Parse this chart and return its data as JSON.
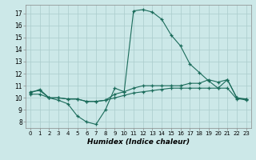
{
  "title": "",
  "xlabel": "Humidex (Indice chaleur)",
  "ylabel": "",
  "bg_color": "#cce8e8",
  "grid_color": "#aacccc",
  "line_color": "#1a6b5a",
  "xlim": [
    -0.5,
    23.5
  ],
  "ylim": [
    7.5,
    17.7
  ],
  "xticks": [
    0,
    1,
    2,
    3,
    4,
    5,
    6,
    7,
    8,
    9,
    10,
    11,
    12,
    13,
    14,
    15,
    16,
    17,
    18,
    19,
    20,
    21,
    22,
    23
  ],
  "yticks": [
    8,
    9,
    10,
    11,
    12,
    13,
    14,
    15,
    16,
    17
  ],
  "line1_x": [
    0,
    1,
    2,
    3,
    4,
    5,
    6,
    7,
    8,
    9,
    10,
    11,
    12,
    13,
    14,
    15,
    16,
    17,
    18,
    19,
    20,
    21,
    22,
    23
  ],
  "line1_y": [
    10.5,
    10.6,
    10.0,
    9.8,
    9.5,
    8.5,
    8.0,
    7.8,
    9.0,
    10.8,
    10.5,
    10.8,
    11.0,
    11.0,
    11.0,
    11.0,
    11.0,
    11.2,
    11.2,
    11.5,
    11.3,
    11.5,
    10.0,
    9.8
  ],
  "line2_x": [
    0,
    1,
    2,
    3,
    4,
    5,
    6,
    7,
    8,
    9,
    10,
    11,
    12,
    13,
    14,
    15,
    16,
    17,
    18,
    19,
    20,
    21,
    22,
    23
  ],
  "line2_y": [
    10.3,
    10.3,
    10.0,
    10.0,
    9.9,
    9.9,
    9.7,
    9.7,
    9.8,
    10.0,
    10.2,
    10.4,
    10.5,
    10.6,
    10.7,
    10.8,
    10.8,
    10.8,
    10.8,
    10.8,
    10.8,
    10.8,
    9.9,
    9.9
  ],
  "line3_x": [
    0,
    1,
    2,
    3,
    4,
    5,
    6,
    7,
    8,
    9,
    10,
    11,
    12,
    13,
    14,
    15,
    16,
    17,
    18,
    19,
    20,
    21,
    22,
    23
  ],
  "line3_y": [
    10.4,
    10.7,
    10.0,
    10.0,
    9.9,
    9.9,
    9.7,
    9.7,
    9.8,
    10.3,
    10.5,
    17.2,
    17.3,
    17.1,
    16.5,
    15.2,
    14.3,
    12.8,
    12.1,
    11.4,
    10.8,
    11.5,
    10.0,
    9.9
  ]
}
